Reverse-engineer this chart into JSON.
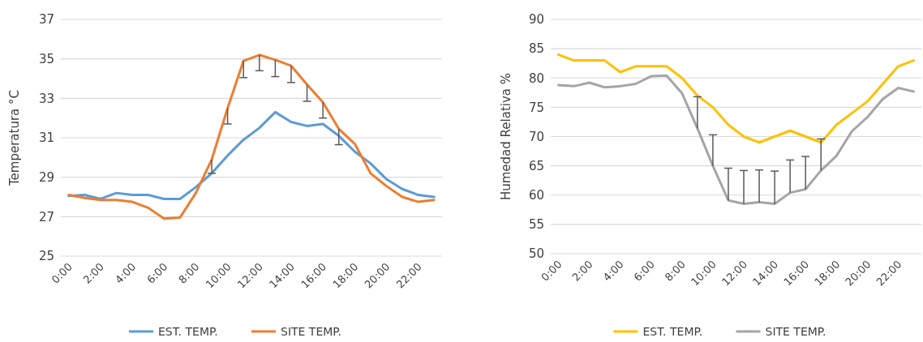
{
  "chart_data": [
    {
      "type": "line",
      "ylabel": "Temperatura °C",
      "categories": [
        "0:00",
        null,
        "2:00",
        null,
        "4:00",
        null,
        "6:00",
        null,
        "8:00",
        null,
        "10:00",
        null,
        "12:00",
        null,
        "14:00",
        null,
        "16:00",
        null,
        "18:00",
        null,
        "20:00",
        null,
        "22:00",
        null
      ],
      "ylim": [
        25,
        37
      ],
      "yticks": [
        25,
        27,
        29,
        31,
        33,
        35,
        37
      ],
      "grid": "y",
      "legend": "bottom",
      "marker": "none",
      "line_style": "solid",
      "series": [
        {
          "name": "EST. TEMP.",
          "color": "#5b9bd5",
          "values": [
            28.05,
            28.1,
            27.9,
            28.2,
            28.1,
            28.1,
            27.9,
            27.9,
            28.5,
            29.2,
            30.1,
            30.9,
            31.5,
            32.3,
            31.8,
            31.6,
            31.7,
            31.1,
            30.3,
            29.7,
            28.9,
            28.4,
            28.1,
            28.0
          ]
        },
        {
          "name": "SITE TEMP.",
          "color": "#ed7d31",
          "values": [
            28.1,
            27.95,
            27.85,
            27.85,
            27.75,
            27.45,
            26.9,
            26.95,
            28.2,
            29.9,
            32.5,
            34.9,
            35.2,
            34.95,
            34.65,
            33.7,
            32.8,
            31.45,
            30.7,
            29.2,
            28.55,
            28.0,
            27.75,
            27.85
          ],
          "errors": [
            null,
            null,
            null,
            null,
            null,
            null,
            null,
            null,
            null,
            [
              29.2,
              29.9
            ],
            [
              31.7,
              32.5
            ],
            [
              34.05,
              34.9
            ],
            [
              34.4,
              35.2
            ],
            [
              34.1,
              34.95
            ],
            [
              33.8,
              34.65
            ],
            [
              32.85,
              33.7
            ],
            [
              32.0,
              32.8
            ],
            [
              30.65,
              31.45
            ],
            null,
            null,
            null,
            null,
            null,
            null
          ]
        }
      ]
    },
    {
      "type": "line",
      "ylabel": "Humedad Relativa %",
      "categories": [
        "0:00",
        null,
        "2:00",
        null,
        "4:00",
        null,
        "6:00",
        null,
        "8:00",
        null,
        "10:00",
        null,
        "12:00",
        null,
        "14:00",
        null,
        "16:00",
        null,
        "18:00",
        null,
        "20:00",
        null,
        "22:00",
        null
      ],
      "ylim": [
        50,
        90
      ],
      "yticks": [
        50,
        55,
        60,
        65,
        70,
        75,
        80,
        85,
        90
      ],
      "grid": "y",
      "legend": "bottom",
      "marker": "none",
      "line_style": "solid",
      "series": [
        {
          "name": "EST. TEMP.",
          "color": "#ffc000",
          "values": [
            84,
            83,
            83,
            83,
            81,
            82,
            82,
            82,
            80,
            77,
            75,
            72,
            70,
            69,
            70,
            71,
            70,
            69,
            72,
            74,
            76,
            79,
            82,
            83
          ]
        },
        {
          "name": "SITE TEMP.",
          "color": "#a5a5a5",
          "values": [
            78.8,
            78.6,
            79.2,
            78.4,
            78.6,
            79.0,
            80.3,
            80.4,
            77.4,
            71.4,
            65.0,
            59.1,
            58.5,
            58.8,
            58.5,
            60.4,
            61.0,
            64.2,
            66.7,
            70.9,
            73.3,
            76.4,
            78.3,
            77.7
          ],
          "errors": [
            null,
            null,
            null,
            null,
            null,
            null,
            null,
            null,
            null,
            [
              71.4,
              76.8
            ],
            [
              65.0,
              70.3
            ],
            [
              59.1,
              64.6
            ],
            [
              58.5,
              64.2
            ],
            [
              58.8,
              64.3
            ],
            [
              58.5,
              64.1
            ],
            [
              60.4,
              66.0
            ],
            [
              61.0,
              66.6
            ],
            [
              64.2,
              69.6
            ],
            null,
            null,
            null,
            null,
            null,
            null
          ]
        }
      ]
    }
  ]
}
